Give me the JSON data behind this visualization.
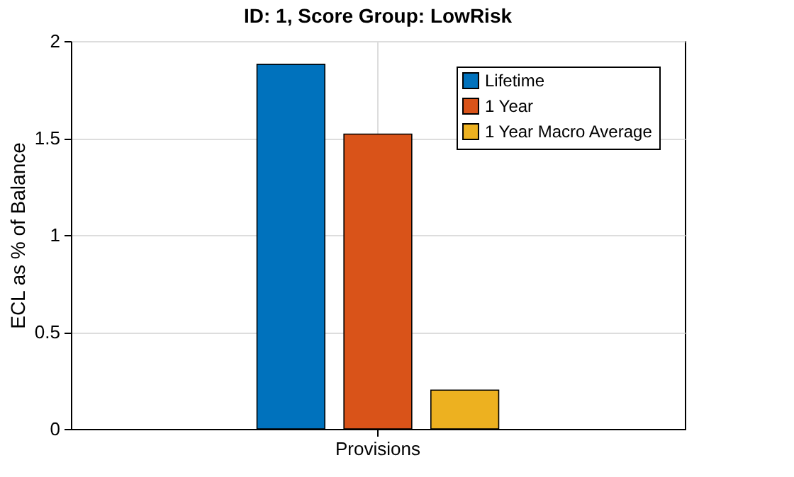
{
  "chart_data": {
    "type": "bar",
    "title": "ID: 1, Score Group: LowRisk",
    "ylabel": "ECL as % of Balance",
    "categories": [
      "Provisions"
    ],
    "series": [
      {
        "name": "Lifetime",
        "color": "#0072bd",
        "values": [
          1.88
        ]
      },
      {
        "name": "1 Year",
        "color": "#d95319",
        "values": [
          1.52
        ]
      },
      {
        "name": "1 Year Macro Average",
        "color": "#edb120",
        "values": [
          0.2
        ]
      }
    ],
    "ylim": [
      0,
      2
    ],
    "yticks": [
      0,
      0.5,
      1,
      1.5,
      2
    ],
    "grid": true,
    "legend": "top right"
  }
}
